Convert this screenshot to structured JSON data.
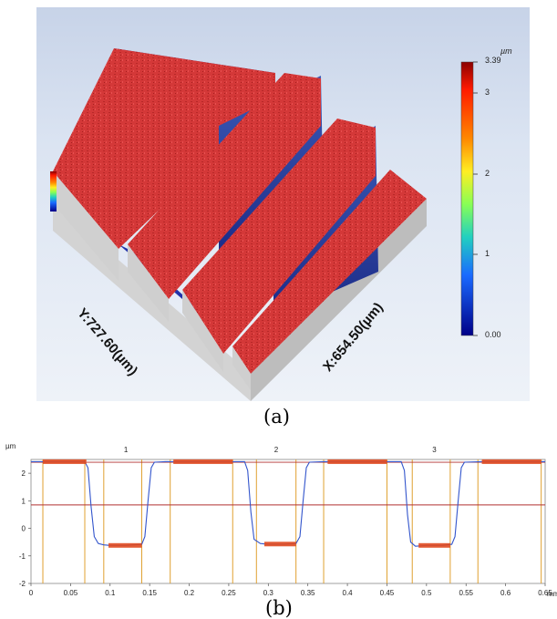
{
  "panel_a": {
    "label": "(a)",
    "y_extent": "Y:727.60(µm)",
    "x_extent": "X:654.50(µm)",
    "colorbar": {
      "unit": "µm",
      "max_label": "3.39",
      "min_label": "0.00",
      "ticks": [
        {
          "label": "3",
          "value": 3
        },
        {
          "label": "2",
          "value": 2
        },
        {
          "label": "1",
          "value": 1
        }
      ],
      "min": 0.0,
      "max": 3.39,
      "colors": [
        "#8b0000",
        "#ff2a00",
        "#ff9900",
        "#ffff33",
        "#66ff66",
        "#22cccc",
        "#1a66ff",
        "#000088"
      ]
    },
    "surface_colors": {
      "top": "#d63a3a",
      "wall": "#2a4aa8",
      "side": "#cfcfcf",
      "floor": "#2233aa"
    }
  },
  "panel_b": {
    "label": "(b)",
    "y_unit": "µm",
    "x_unit": "mm",
    "profile_labels": [
      "1",
      "2",
      "3"
    ]
  },
  "chart_data": {
    "type": "line",
    "title": "",
    "xlabel": "mm",
    "ylabel": "µm",
    "xlim": [
      0,
      0.65
    ],
    "ylim": [
      -2,
      2.5
    ],
    "x_ticks": [
      0,
      0.05,
      0.1,
      0.15,
      0.2,
      0.25,
      0.3,
      0.35,
      0.4,
      0.45,
      0.5,
      0.55,
      0.6,
      0.65
    ],
    "x_tick_labels": [
      "0",
      "0.05",
      "0.1",
      "0.15",
      "0.2",
      "0.25",
      "0.3",
      "0.35",
      "0.4",
      "0.45",
      "0.5",
      "0.55",
      "0.6",
      "0.65"
    ],
    "y_ticks": [
      -2,
      -1,
      0,
      1,
      2
    ],
    "y_tick_labels": [
      "-2",
      "-1",
      "0",
      "1",
      "2"
    ],
    "reference_lines_y": [
      2.4,
      0.85
    ],
    "series": [
      {
        "x": [
          0.0,
          0.068,
          0.072,
          0.076,
          0.08,
          0.085,
          0.092,
          0.1,
          0.12,
          0.14,
          0.144,
          0.148,
          0.152,
          0.156,
          0.17,
          0.2,
          0.25,
          0.27,
          0.274,
          0.278,
          0.282,
          0.29,
          0.3,
          0.32,
          0.335,
          0.34,
          0.344,
          0.348,
          0.352,
          0.37,
          0.4,
          0.45,
          0.468,
          0.472,
          0.476,
          0.48,
          0.486,
          0.5,
          0.52,
          0.532,
          0.536,
          0.54,
          0.544,
          0.548,
          0.57,
          0.6,
          0.65
        ],
        "y": [
          2.42,
          2.42,
          2.2,
          0.8,
          -0.3,
          -0.55,
          -0.6,
          -0.62,
          -0.62,
          -0.58,
          -0.3,
          1.0,
          2.2,
          2.4,
          2.42,
          2.42,
          2.42,
          2.42,
          2.1,
          0.6,
          -0.4,
          -0.55,
          -0.58,
          -0.58,
          -0.55,
          -0.3,
          1.0,
          2.2,
          2.4,
          2.42,
          2.42,
          2.42,
          2.42,
          2.1,
          0.5,
          -0.5,
          -0.65,
          -0.62,
          -0.62,
          -0.58,
          -0.3,
          1.0,
          2.2,
          2.4,
          2.42,
          2.42,
          2.42
        ]
      }
    ],
    "plateaus": [
      {
        "x_start": 0.015,
        "x_end": 0.07,
        "y": 2.42
      },
      {
        "x_start": 0.098,
        "x_end": 0.14,
        "y": -0.62
      },
      {
        "x_start": 0.18,
        "x_end": 0.255,
        "y": 2.42
      },
      {
        "x_start": 0.295,
        "x_end": 0.335,
        "y": -0.57
      },
      {
        "x_start": 0.375,
        "x_end": 0.45,
        "y": 2.42
      },
      {
        "x_start": 0.49,
        "x_end": 0.53,
        "y": -0.62
      },
      {
        "x_start": 0.57,
        "x_end": 0.645,
        "y": 2.42
      }
    ],
    "cursor_lines_x": [
      0.015,
      0.068,
      0.092,
      0.14,
      0.176,
      0.255,
      0.285,
      0.335,
      0.37,
      0.45,
      0.482,
      0.53,
      0.565,
      0.645
    ],
    "grid": false
  }
}
